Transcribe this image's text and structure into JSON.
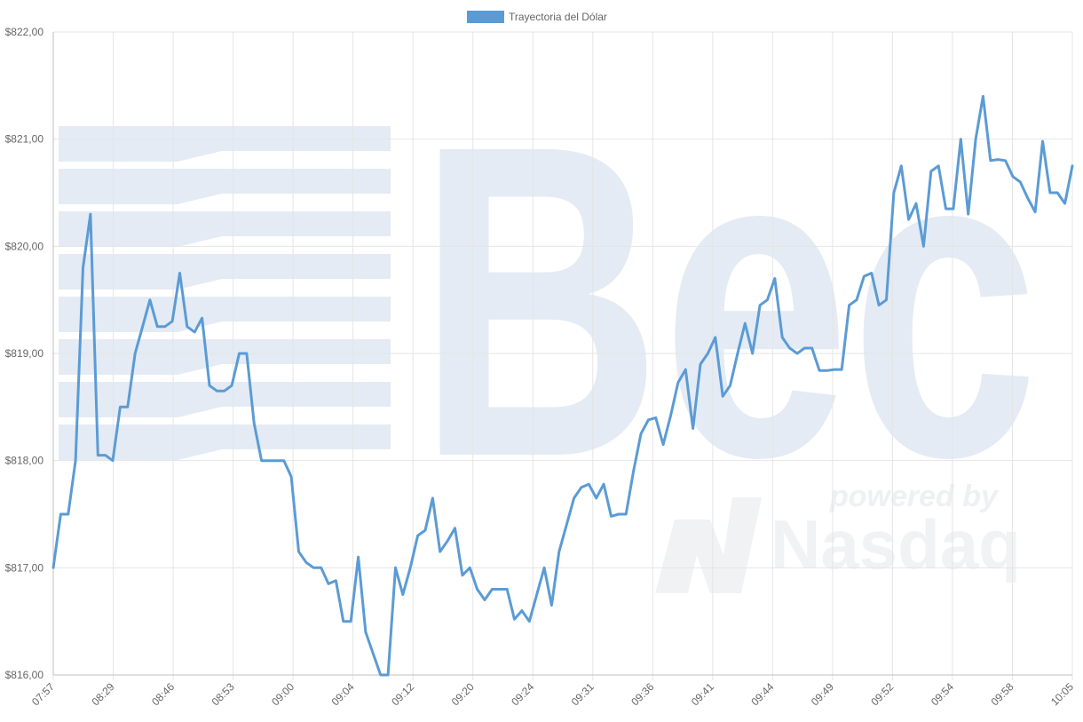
{
  "chart_data": {
    "type": "line",
    "title": "",
    "xlabel": "",
    "ylabel": "",
    "ylim": [
      816,
      822
    ],
    "y_ticks": [
      {
        "value": 822,
        "label": "$822,00"
      },
      {
        "value": 821,
        "label": "$821,00"
      },
      {
        "value": 820,
        "label": "$820,00"
      },
      {
        "value": 819,
        "label": "$819,00"
      },
      {
        "value": 818,
        "label": "$818,00"
      },
      {
        "value": 817,
        "label": "$817,00"
      },
      {
        "value": 816,
        "label": "$816,00"
      }
    ],
    "x_tick_labels": [
      "07:57",
      "08:29",
      "08:46",
      "08:53",
      "09:00",
      "09:04",
      "09:12",
      "09:20",
      "09:24",
      "09:31",
      "09:36",
      "09:41",
      "09:44",
      "09:49",
      "09:52",
      "09:54",
      "09:58",
      "10:05"
    ],
    "grid": true,
    "legend": {
      "position": "top-center",
      "entries": [
        "Trayectoria del Dólar"
      ]
    },
    "series": [
      {
        "name": "Trayectoria del Dólar",
        "color": "#5b9bd5",
        "values": [
          817.0,
          817.5,
          817.5,
          818.0,
          819.8,
          820.3,
          818.05,
          818.05,
          818.0,
          818.5,
          818.5,
          819.0,
          819.25,
          819.5,
          819.25,
          819.25,
          819.3,
          819.75,
          819.25,
          819.2,
          819.33,
          818.7,
          818.65,
          818.65,
          818.7,
          819.0,
          819.0,
          818.35,
          818.0,
          818.0,
          818.0,
          818.0,
          817.85,
          817.15,
          817.05,
          817.0,
          817.0,
          816.85,
          816.88,
          816.5,
          816.5,
          817.1,
          816.4,
          816.2,
          816.0,
          816.0,
          817.0,
          816.75,
          817.0,
          817.3,
          817.35,
          817.65,
          817.15,
          817.25,
          817.37,
          816.93,
          817.0,
          816.8,
          816.7,
          816.8,
          816.8,
          816.8,
          816.52,
          816.6,
          816.5,
          816.75,
          817.0,
          816.65,
          817.15,
          817.4,
          817.65,
          817.75,
          817.78,
          817.65,
          817.78,
          817.48,
          817.5,
          817.5,
          817.9,
          818.25,
          818.38,
          818.4,
          818.15,
          818.42,
          818.73,
          818.85,
          818.3,
          818.9,
          819.0,
          819.15,
          818.6,
          818.7,
          819.0,
          819.28,
          819.0,
          819.45,
          819.5,
          819.7,
          819.15,
          819.05,
          819.0,
          819.05,
          819.05,
          818.84,
          818.84,
          818.85,
          818.85,
          819.45,
          819.5,
          819.72,
          819.75,
          819.45,
          819.5,
          820.5,
          820.75,
          820.25,
          820.4,
          820.0,
          820.7,
          820.75,
          820.35,
          820.35,
          821.0,
          820.3,
          821.0,
          821.4,
          820.8,
          820.81,
          820.8,
          820.65,
          820.6,
          820.45,
          820.32,
          820.98,
          820.5,
          820.5,
          820.4,
          820.75
        ]
      }
    ]
  },
  "watermark": {
    "logo_text": "Bec",
    "powered_by": "powered by",
    "nasdaq": "Nasdaq"
  }
}
